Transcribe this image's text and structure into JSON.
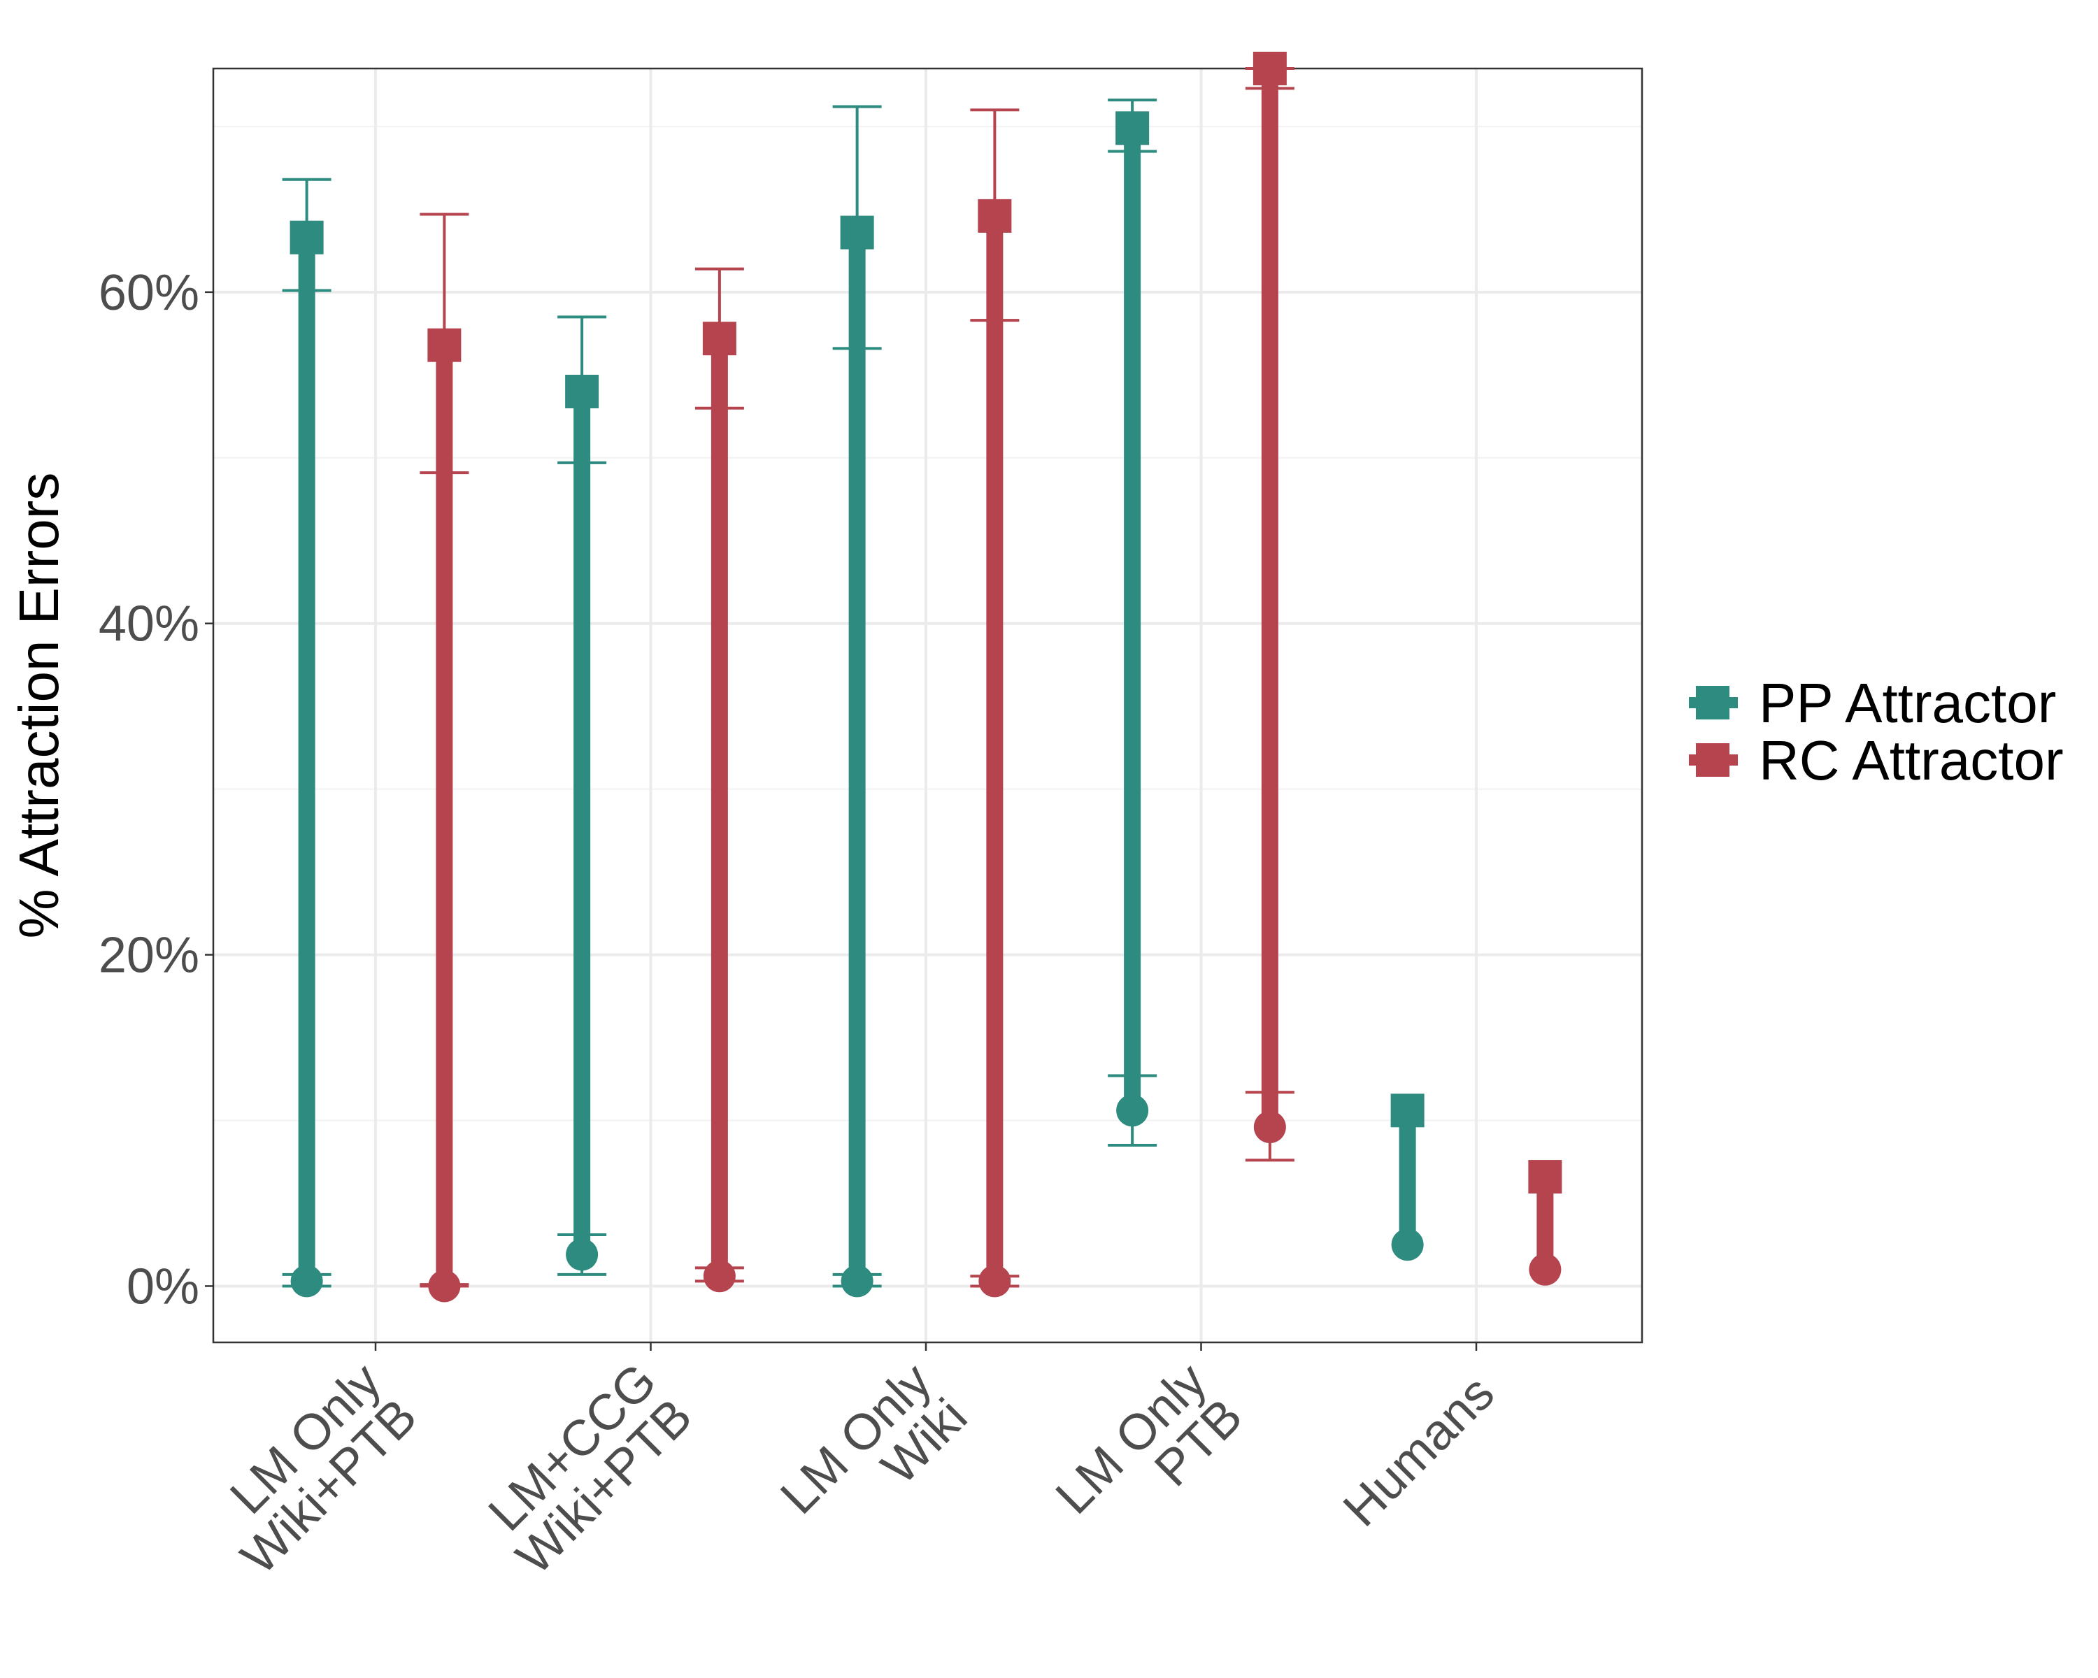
{
  "chart_data": {
    "type": "dumbbell",
    "ylabel": "% Attraction Errors",
    "ylim": [
      -3.4,
      73.5
    ],
    "y_ticks": [
      {
        "value": 0,
        "label": "0%"
      },
      {
        "value": 20,
        "label": "20%"
      },
      {
        "value": 40,
        "label": "40%"
      },
      {
        "value": 60,
        "label": "60%"
      }
    ],
    "y_minor_ticks": [
      10,
      30,
      50,
      70
    ],
    "grid": true,
    "legend_position": "right",
    "categories": [
      {
        "line1": "LM Only",
        "line2": "Wiki+PTB"
      },
      {
        "line1": "LM+CCG",
        "line2": "Wiki+PTB"
      },
      {
        "line1": "LM Only",
        "line2": "Wiki"
      },
      {
        "line1": "LM Only",
        "line2": "PTB"
      },
      {
        "line1": "Humans",
        "line2": ""
      }
    ],
    "series": [
      {
        "name": "PP Attractor",
        "color": "#2e8b80",
        "offset": -0.25,
        "square": [
          63.3,
          54.0,
          63.6,
          69.9,
          10.6
        ],
        "square_err": [
          [
            60.1,
            66.8
          ],
          [
            49.7,
            58.5
          ],
          [
            56.6,
            71.2
          ],
          [
            68.5,
            71.6
          ],
          null
        ],
        "circle": [
          0.3,
          1.9,
          0.3,
          10.6,
          2.5
        ],
        "circle_err": [
          [
            0.0,
            0.7
          ],
          [
            0.7,
            3.1
          ],
          [
            0.0,
            0.7
          ],
          [
            8.5,
            12.7
          ],
          null
        ]
      },
      {
        "name": "RC Attractor",
        "color": "#b5444e",
        "offset": 0.25,
        "square": [
          56.8,
          57.2,
          64.6,
          73.6,
          6.6
        ],
        "square_err": [
          [
            49.1,
            64.7
          ],
          [
            53.0,
            61.4
          ],
          [
            58.3,
            71.0
          ],
          [
            72.3,
            73.6
          ],
          null
        ],
        "circle": [
          0.0,
          0.6,
          0.3,
          9.6,
          1.0
        ],
        "circle_err": [
          [
            0.0,
            0.1
          ],
          [
            0.3,
            1.1
          ],
          [
            0.0,
            0.6
          ],
          [
            7.6,
            11.7
          ],
          null
        ]
      }
    ]
  }
}
